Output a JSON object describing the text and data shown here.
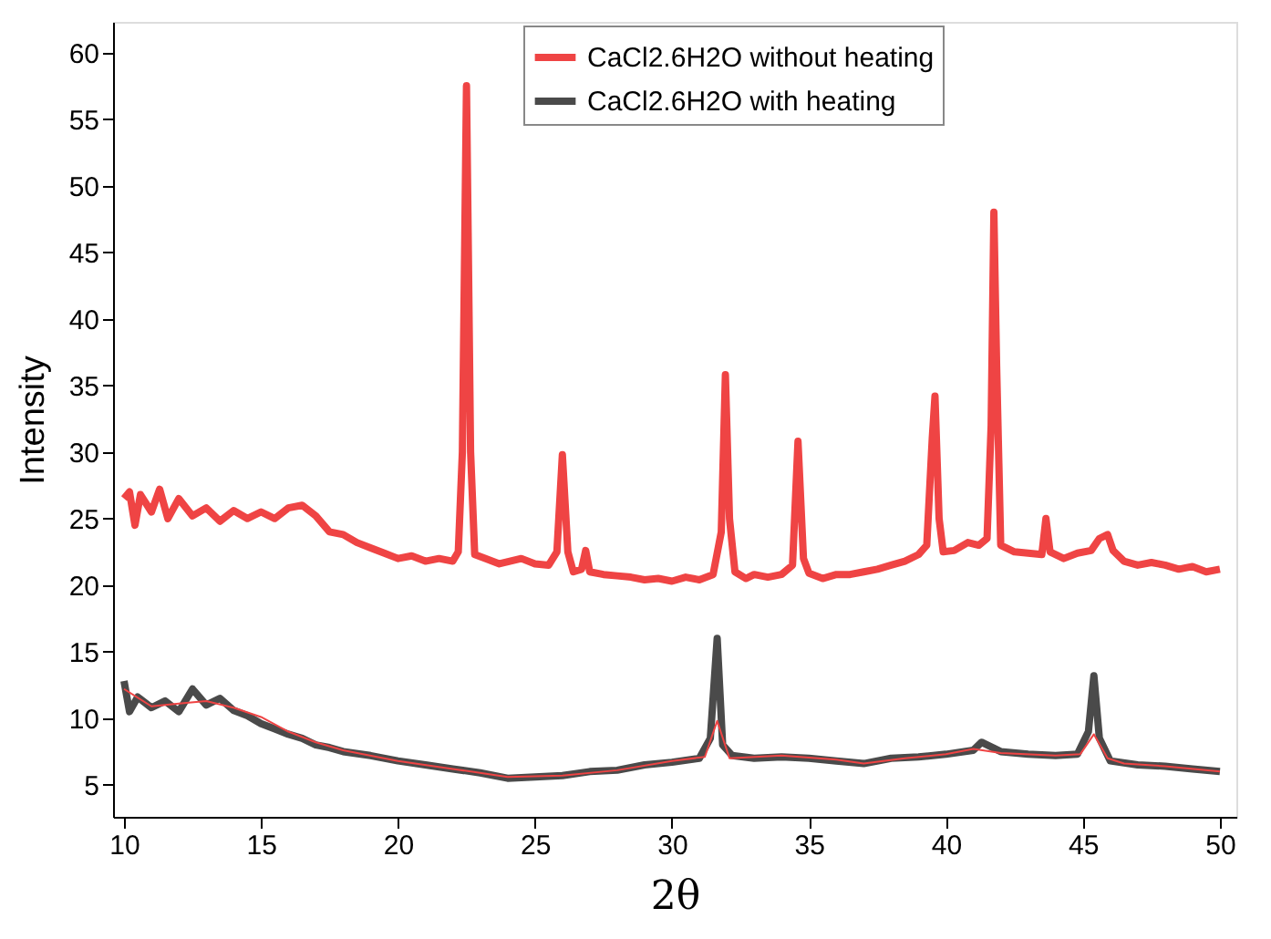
{
  "chart_data": {
    "type": "line",
    "xlabel": "2θ",
    "ylabel": "Intensity",
    "xlim": [
      9.6,
      50.6
    ],
    "ylim": [
      2.6,
      62.3
    ],
    "xticks": [
      10,
      15,
      20,
      25,
      30,
      35,
      40,
      45,
      50
    ],
    "yticks": [
      5,
      10,
      15,
      20,
      25,
      30,
      35,
      40,
      45,
      50,
      55,
      60
    ],
    "grid": false,
    "legend": "top right",
    "line_style": "solid",
    "marker": "none",
    "series": [
      {
        "name": "CaCl2.6H2O without heating",
        "color": "#ef4444",
        "x": [
          10.0,
          10.2,
          10.4,
          10.6,
          11,
          11.3,
          11.6,
          12,
          12.5,
          13,
          13.5,
          14,
          14.5,
          15,
          15.5,
          16,
          16.5,
          17,
          17.5,
          18,
          18.5,
          19,
          19.5,
          20,
          20.5,
          21,
          21.5,
          22,
          22.2,
          22.35,
          22.5,
          22.65,
          22.8,
          23.2,
          23.7,
          24.5,
          25,
          25.5,
          25.8,
          26.0,
          26.2,
          26.4,
          26.7,
          26.85,
          27.0,
          27.5,
          28,
          28.5,
          29,
          29.5,
          30,
          30.5,
          31,
          31.5,
          31.8,
          31.95,
          32.1,
          32.3,
          32.7,
          33,
          33.5,
          34,
          34.4,
          34.6,
          34.8,
          35,
          35.5,
          36,
          36.5,
          37,
          37.5,
          38,
          38.5,
          39,
          39.3,
          39.5,
          39.6,
          39.75,
          39.9,
          40.3,
          40.8,
          41.2,
          41.5,
          41.65,
          41.75,
          41.85,
          42,
          42.5,
          43,
          43.5,
          43.65,
          43.8,
          44.3,
          44.8,
          45.3,
          45.6,
          45.9,
          46.1,
          46.5,
          47,
          47.5,
          48,
          48.5,
          49,
          49.5,
          50
        ],
        "values": [
          26.5,
          27,
          24.5,
          26.8,
          25.5,
          27.2,
          25,
          26.5,
          25.2,
          25.8,
          24.8,
          25.6,
          25,
          25.5,
          25,
          25.8,
          26,
          25.2,
          24,
          23.8,
          23.2,
          22.8,
          22.4,
          22,
          22.2,
          21.8,
          22,
          21.8,
          22.5,
          30,
          57.5,
          30,
          22.3,
          22,
          21.6,
          22,
          21.6,
          21.5,
          22.5,
          29.8,
          22.5,
          21,
          21.2,
          22.6,
          21,
          20.8,
          20.7,
          20.6,
          20.4,
          20.5,
          20.3,
          20.6,
          20.4,
          20.8,
          24,
          35.8,
          25,
          21,
          20.5,
          20.8,
          20.6,
          20.8,
          21.5,
          30.8,
          22,
          20.9,
          20.5,
          20.8,
          20.8,
          21,
          21.2,
          21.5,
          21.8,
          22.3,
          23,
          31,
          34.2,
          25,
          22.5,
          22.6,
          23.2,
          23,
          23.5,
          32,
          48,
          36.5,
          23,
          22.5,
          22.4,
          22.3,
          25,
          22.5,
          22,
          22.4,
          22.6,
          23.5,
          23.8,
          22.6,
          21.8,
          21.5,
          21.7,
          21.5,
          21.2,
          21.4,
          21,
          21.2
        ]
      },
      {
        "name": "CaCl2.6H2O with heating",
        "color": "#4a4a4a",
        "x": [
          10,
          10.2,
          10.5,
          11,
          11.5,
          12,
          12.5,
          13,
          13.5,
          14,
          14.5,
          15,
          15.5,
          16,
          16.5,
          17,
          17.5,
          18,
          19,
          20,
          21,
          22,
          23,
          24,
          25,
          26,
          27,
          28,
          29,
          30,
          31,
          31.4,
          31.65,
          31.85,
          32.2,
          33,
          34,
          35,
          36,
          37,
          38,
          39,
          40,
          41,
          41.3,
          42,
          43,
          44,
          44.8,
          45.2,
          45.4,
          45.6,
          46,
          47,
          48,
          49,
          50
        ],
        "values": [
          12.8,
          10.5,
          11.6,
          10.8,
          11.3,
          10.5,
          12.2,
          11,
          11.5,
          10.6,
          10.2,
          9.6,
          9.2,
          8.8,
          8.5,
          8.0,
          7.8,
          7.5,
          7.2,
          6.8,
          6.5,
          6.2,
          5.9,
          5.5,
          5.6,
          5.7,
          6.0,
          6.1,
          6.5,
          6.7,
          7.0,
          8.5,
          16,
          8,
          7.2,
          7.0,
          7.1,
          7.0,
          6.8,
          6.6,
          7.0,
          7.1,
          7.3,
          7.6,
          8.2,
          7.5,
          7.3,
          7.2,
          7.3,
          9,
          13.2,
          8.5,
          6.8,
          6.5,
          6.4,
          6.2,
          6.0
        ]
      },
      {
        "color": "#ef4444",
        "x": [
          10,
          11,
          12,
          13,
          14,
          15,
          16,
          17,
          18,
          20,
          22,
          24,
          26,
          28,
          30,
          31.2,
          31.65,
          32.1,
          34,
          36,
          37,
          38.5,
          40,
          41,
          42,
          44,
          44.9,
          45.4,
          45.9,
          46.5,
          48,
          50
        ],
        "values": [
          12.2,
          10.9,
          11.1,
          11.3,
          10.8,
          10.1,
          9.0,
          8.2,
          7.6,
          6.8,
          6.2,
          5.6,
          5.7,
          6.1,
          6.8,
          7.1,
          9.8,
          7.0,
          7.2,
          6.9,
          6.6,
          7.0,
          7.3,
          7.7,
          7.4,
          7.2,
          7.3,
          8.8,
          7.0,
          6.6,
          6.4,
          6.0
        ]
      }
    ]
  }
}
